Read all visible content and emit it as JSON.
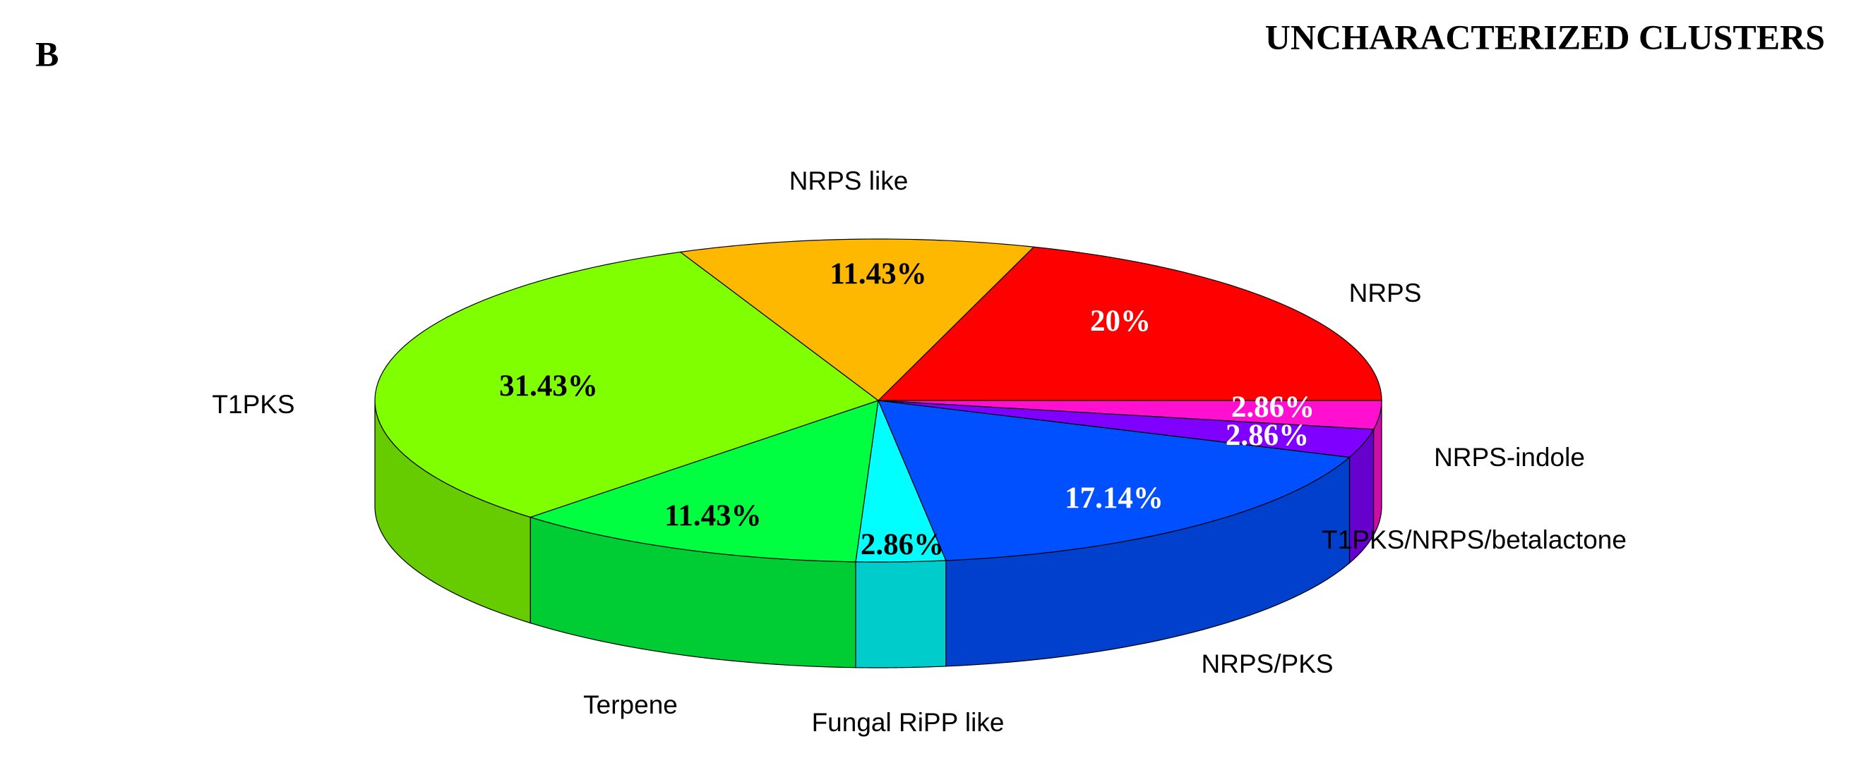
{
  "chart_data": {
    "type": "pie3d",
    "panel_label": "B",
    "title": "UNCHARACTERIZED CLUSTERS",
    "categories": [
      "NRPS",
      "NRPS-indole",
      "T1PKS/NRPS/betalactone",
      "NRPS/PKS",
      "Fungal RiPP like",
      "Terpene",
      "T1PKS",
      "NRPS like"
    ],
    "values": [
      20,
      2.86,
      2.86,
      17.14,
      2.86,
      11.43,
      31.43,
      11.43
    ],
    "value_labels": [
      "20%",
      "2.86%",
      "2.86%",
      "17.14%",
      "2.86%",
      "11.43%",
      "31.43%",
      "11.43%"
    ],
    "colors": [
      "#ff0000",
      "#ff10d0",
      "#8000ff",
      "#0050ff",
      "#00ffff",
      "#00ff40",
      "#80ff00",
      "#ffb800"
    ],
    "value_label_colors": [
      "#ffffff",
      "#ffffff",
      "#ffffff",
      "#ffffff",
      "#000000",
      "#000000",
      "#000000",
      "#000000"
    ]
  }
}
